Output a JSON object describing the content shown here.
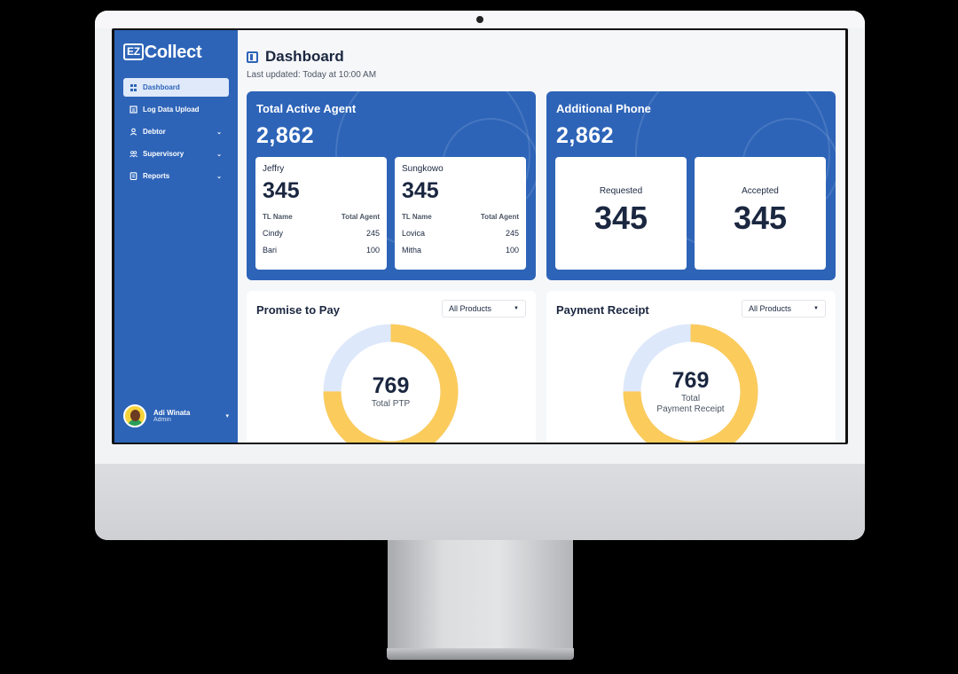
{
  "app": {
    "logo_mark": "EZ",
    "logo_text": "Collect"
  },
  "sidebar": {
    "items": [
      {
        "label": "Dashboard",
        "icon": "grid-icon",
        "active": true
      },
      {
        "label": "Log Data Upload",
        "icon": "upload-icon"
      },
      {
        "label": "Debtor",
        "icon": "user-icon",
        "expandable": true
      },
      {
        "label": "Supervisory",
        "icon": "users-icon",
        "expandable": true
      },
      {
        "label": "Reports",
        "icon": "report-icon",
        "expandable": true
      }
    ],
    "user": {
      "name": "Adi Winata",
      "role": "Admin"
    }
  },
  "header": {
    "title": "Dashboard",
    "last_updated": "Last updated: Today at 10:00 AM"
  },
  "total_active_agent": {
    "title": "Total Active Agent",
    "value": "2,862",
    "groups": [
      {
        "name": "Jeffry",
        "value": "345",
        "col_tl": "TL Name",
        "col_total": "Total Agent",
        "rows": [
          {
            "tl": "Cindy",
            "total": "245"
          },
          {
            "tl": "Bari",
            "total": "100"
          }
        ]
      },
      {
        "name": "Sungkowo",
        "value": "345",
        "col_tl": "TL Name",
        "col_total": "Total Agent",
        "rows": [
          {
            "tl": "Lovica",
            "total": "245"
          },
          {
            "tl": "Mitha",
            "total": "100"
          }
        ]
      }
    ]
  },
  "additional_phone": {
    "title": "Additional Phone",
    "value": "2,862",
    "requested": {
      "label": "Requested",
      "value": "345"
    },
    "accepted": {
      "label": "Accepted",
      "value": "345"
    }
  },
  "promise_to_pay": {
    "title": "Promise to Pay",
    "filter": "All Products",
    "total": "769",
    "total_label": "Total PTP",
    "filled_fraction": 0.75
  },
  "payment_receipt": {
    "title": "Payment Receipt",
    "filter": "All Products",
    "total": "769",
    "total_label_1": "Total",
    "total_label_2": "Payment Receipt",
    "filled_fraction": 0.75
  },
  "colors": {
    "primary": "#2d64b8",
    "donut_fill": "#fbcb5c",
    "donut_track": "#dde8fb"
  }
}
